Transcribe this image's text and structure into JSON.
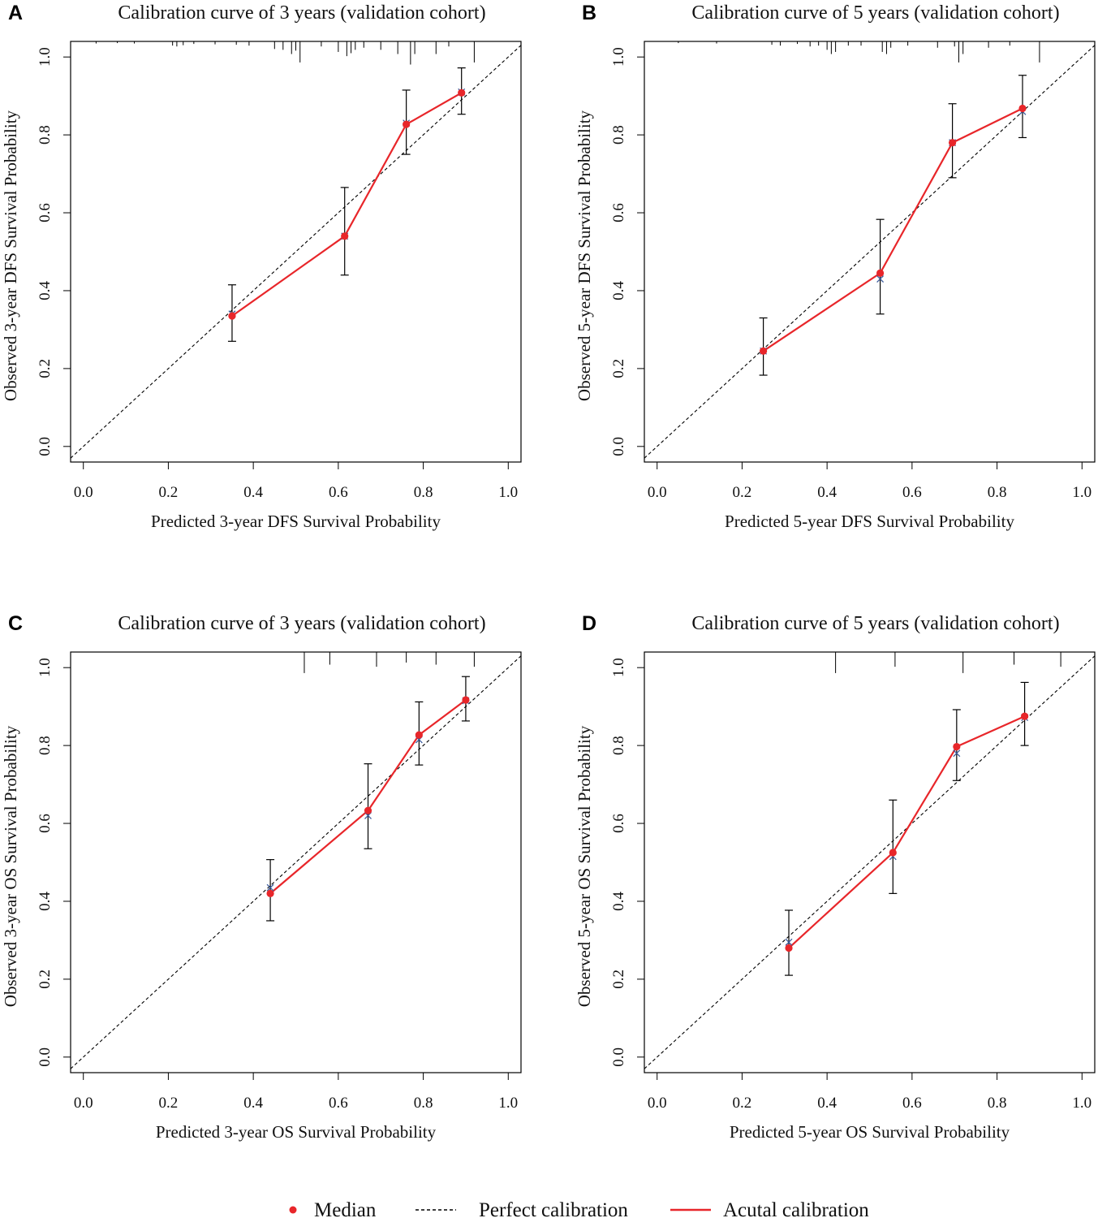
{
  "legend": {
    "median_label": "Median",
    "perfect_label": "Perfect calibration",
    "actual_label": "Acutal calibration"
  },
  "colors": {
    "actual": "#e8262a",
    "median": "#e8262a",
    "perfect": "#000000",
    "errorbar": "#000000",
    "cross": "#3a5a9b"
  },
  "chart_data": [
    {
      "panel": "A",
      "type": "line",
      "title": "Calibration curve of 3 years (validation cohort)",
      "xlabel": "Predicted 3-year DFS Survival Probability",
      "ylabel": "Observed 3-year DFS Survival Probability",
      "xlim": [
        -0.03,
        1.03
      ],
      "ylim": [
        -0.04,
        1.04
      ],
      "xticks": [
        "0.0",
        "0.2",
        "0.4",
        "0.6",
        "0.8",
        "1.0"
      ],
      "yticks": [
        "0.0",
        "0.2",
        "0.4",
        "0.6",
        "0.8",
        "1.0"
      ],
      "points": [
        {
          "x": 0.35,
          "y": 0.335,
          "cross": 0.34,
          "lo": 0.27,
          "hi": 0.415
        },
        {
          "x": 0.615,
          "y": 0.54,
          "cross": 0.54,
          "lo": 0.44,
          "hi": 0.665
        },
        {
          "x": 0.76,
          "y": 0.827,
          "cross": 0.83,
          "lo": 0.75,
          "hi": 0.915
        },
        {
          "x": 0.89,
          "y": 0.908,
          "cross": 0.91,
          "lo": 0.853,
          "hi": 0.972
        }
      ],
      "rug": [
        {
          "x": 0.03,
          "h": 0.005
        },
        {
          "x": 0.08,
          "h": 0.004
        },
        {
          "x": 0.12,
          "h": 0.005
        },
        {
          "x": 0.21,
          "h": 0.01
        },
        {
          "x": 0.22,
          "h": 0.012
        },
        {
          "x": 0.235,
          "h": 0.009
        },
        {
          "x": 0.26,
          "h": 0.006
        },
        {
          "x": 0.31,
          "h": 0.007
        },
        {
          "x": 0.36,
          "h": 0.008
        },
        {
          "x": 0.39,
          "h": 0.01
        },
        {
          "x": 0.45,
          "h": 0.018
        },
        {
          "x": 0.47,
          "h": 0.02
        },
        {
          "x": 0.49,
          "h": 0.03
        },
        {
          "x": 0.5,
          "h": 0.022
        },
        {
          "x": 0.51,
          "h": 0.05
        },
        {
          "x": 0.56,
          "h": 0.012
        },
        {
          "x": 0.6,
          "h": 0.025
        },
        {
          "x": 0.62,
          "h": 0.035
        },
        {
          "x": 0.63,
          "h": 0.028
        },
        {
          "x": 0.64,
          "h": 0.02
        },
        {
          "x": 0.66,
          "h": 0.015
        },
        {
          "x": 0.7,
          "h": 0.02
        },
        {
          "x": 0.74,
          "h": 0.03
        },
        {
          "x": 0.77,
          "h": 0.055
        },
        {
          "x": 0.78,
          "h": 0.03
        },
        {
          "x": 0.83,
          "h": 0.03
        },
        {
          "x": 0.86,
          "h": 0.012
        },
        {
          "x": 0.92,
          "h": 0.05
        }
      ]
    },
    {
      "panel": "B",
      "type": "line",
      "title": "Calibration curve of 5 years (validation cohort)",
      "xlabel": "Predicted 5-year DFS Survival Probability",
      "ylabel": "Observed 5-year DFS Survival Probability",
      "xlim": [
        -0.03,
        1.03
      ],
      "ylim": [
        -0.04,
        1.04
      ],
      "xticks": [
        "0.0",
        "0.2",
        "0.4",
        "0.6",
        "0.8",
        "1.0"
      ],
      "yticks": [
        "0.0",
        "0.2",
        "0.4",
        "0.6",
        "0.8",
        "1.0"
      ],
      "points": [
        {
          "x": 0.25,
          "y": 0.245,
          "cross": 0.245,
          "lo": 0.183,
          "hi": 0.33
        },
        {
          "x": 0.525,
          "y": 0.445,
          "cross": 0.43,
          "lo": 0.34,
          "hi": 0.583
        },
        {
          "x": 0.695,
          "y": 0.78,
          "cross": 0.78,
          "lo": 0.69,
          "hi": 0.88
        },
        {
          "x": 0.86,
          "y": 0.868,
          "cross": 0.86,
          "lo": 0.793,
          "hi": 0.953
        }
      ],
      "rug": [
        {
          "x": 0.05,
          "h": 0.004
        },
        {
          "x": 0.14,
          "h": 0.005
        },
        {
          "x": 0.27,
          "h": 0.008
        },
        {
          "x": 0.29,
          "h": 0.01
        },
        {
          "x": 0.33,
          "h": 0.006
        },
        {
          "x": 0.36,
          "h": 0.012
        },
        {
          "x": 0.38,
          "h": 0.01
        },
        {
          "x": 0.4,
          "h": 0.02
        },
        {
          "x": 0.41,
          "h": 0.03
        },
        {
          "x": 0.42,
          "h": 0.025
        },
        {
          "x": 0.45,
          "h": 0.01
        },
        {
          "x": 0.48,
          "h": 0.01
        },
        {
          "x": 0.53,
          "h": 0.025
        },
        {
          "x": 0.54,
          "h": 0.03
        },
        {
          "x": 0.55,
          "h": 0.015
        },
        {
          "x": 0.59,
          "h": 0.01
        },
        {
          "x": 0.66,
          "h": 0.015
        },
        {
          "x": 0.7,
          "h": 0.012
        },
        {
          "x": 0.71,
          "h": 0.05
        },
        {
          "x": 0.72,
          "h": 0.03
        },
        {
          "x": 0.78,
          "h": 0.015
        },
        {
          "x": 0.83,
          "h": 0.01
        },
        {
          "x": 0.9,
          "h": 0.05
        }
      ]
    },
    {
      "panel": "C",
      "type": "line",
      "title": "Calibration curve of 3 years (validation cohort)",
      "xlabel": "Predicted 3-year OS Survival Probability",
      "ylabel": "Observed 3-year OS Survival Probability",
      "xlim": [
        -0.03,
        1.03
      ],
      "ylim": [
        -0.04,
        1.04
      ],
      "xticks": [
        "0.0",
        "0.2",
        "0.4",
        "0.6",
        "0.8",
        "1.0"
      ],
      "yticks": [
        "0.0",
        "0.2",
        "0.4",
        "0.6",
        "0.8",
        "1.0"
      ],
      "points": [
        {
          "x": 0.44,
          "y": 0.42,
          "cross": 0.435,
          "lo": 0.35,
          "hi": 0.507
        },
        {
          "x": 0.67,
          "y": 0.633,
          "cross": 0.62,
          "lo": 0.535,
          "hi": 0.753
        },
        {
          "x": 0.79,
          "y": 0.827,
          "cross": 0.815,
          "lo": 0.75,
          "hi": 0.912
        },
        {
          "x": 0.9,
          "y": 0.917,
          "cross": 0.915,
          "lo": 0.863,
          "hi": 0.977
        }
      ],
      "rug": [
        {
          "x": 0.52,
          "h": 0.05
        },
        {
          "x": 0.58,
          "h": 0.03
        },
        {
          "x": 0.69,
          "h": 0.035
        },
        {
          "x": 0.76,
          "h": 0.025
        },
        {
          "x": 0.83,
          "h": 0.03
        },
        {
          "x": 0.92,
          "h": 0.035
        }
      ]
    },
    {
      "panel": "D",
      "type": "line",
      "title": "Calibration curve of 5 years (validation cohort)",
      "xlabel": "Predicted 5-year OS Survival Probability",
      "ylabel": "Observed 5-year OS Survival Probability",
      "xlim": [
        -0.03,
        1.03
      ],
      "ylim": [
        -0.04,
        1.04
      ],
      "xticks": [
        "0.0",
        "0.2",
        "0.4",
        "0.6",
        "0.8",
        "1.0"
      ],
      "yticks": [
        "0.0",
        "0.2",
        "0.4",
        "0.6",
        "0.8",
        "1.0"
      ],
      "points": [
        {
          "x": 0.31,
          "y": 0.28,
          "cross": 0.295,
          "lo": 0.21,
          "hi": 0.377
        },
        {
          "x": 0.555,
          "y": 0.525,
          "cross": 0.515,
          "lo": 0.42,
          "hi": 0.66
        },
        {
          "x": 0.705,
          "y": 0.797,
          "cross": 0.78,
          "lo": 0.71,
          "hi": 0.892
        },
        {
          "x": 0.865,
          "y": 0.875,
          "cross": 0.872,
          "lo": 0.8,
          "hi": 0.962
        }
      ],
      "rug": [
        {
          "x": 0.42,
          "h": 0.05
        },
        {
          "x": 0.56,
          "h": 0.035
        },
        {
          "x": 0.72,
          "h": 0.05
        },
        {
          "x": 0.84,
          "h": 0.03
        },
        {
          "x": 0.95,
          "h": 0.035
        }
      ]
    }
  ]
}
